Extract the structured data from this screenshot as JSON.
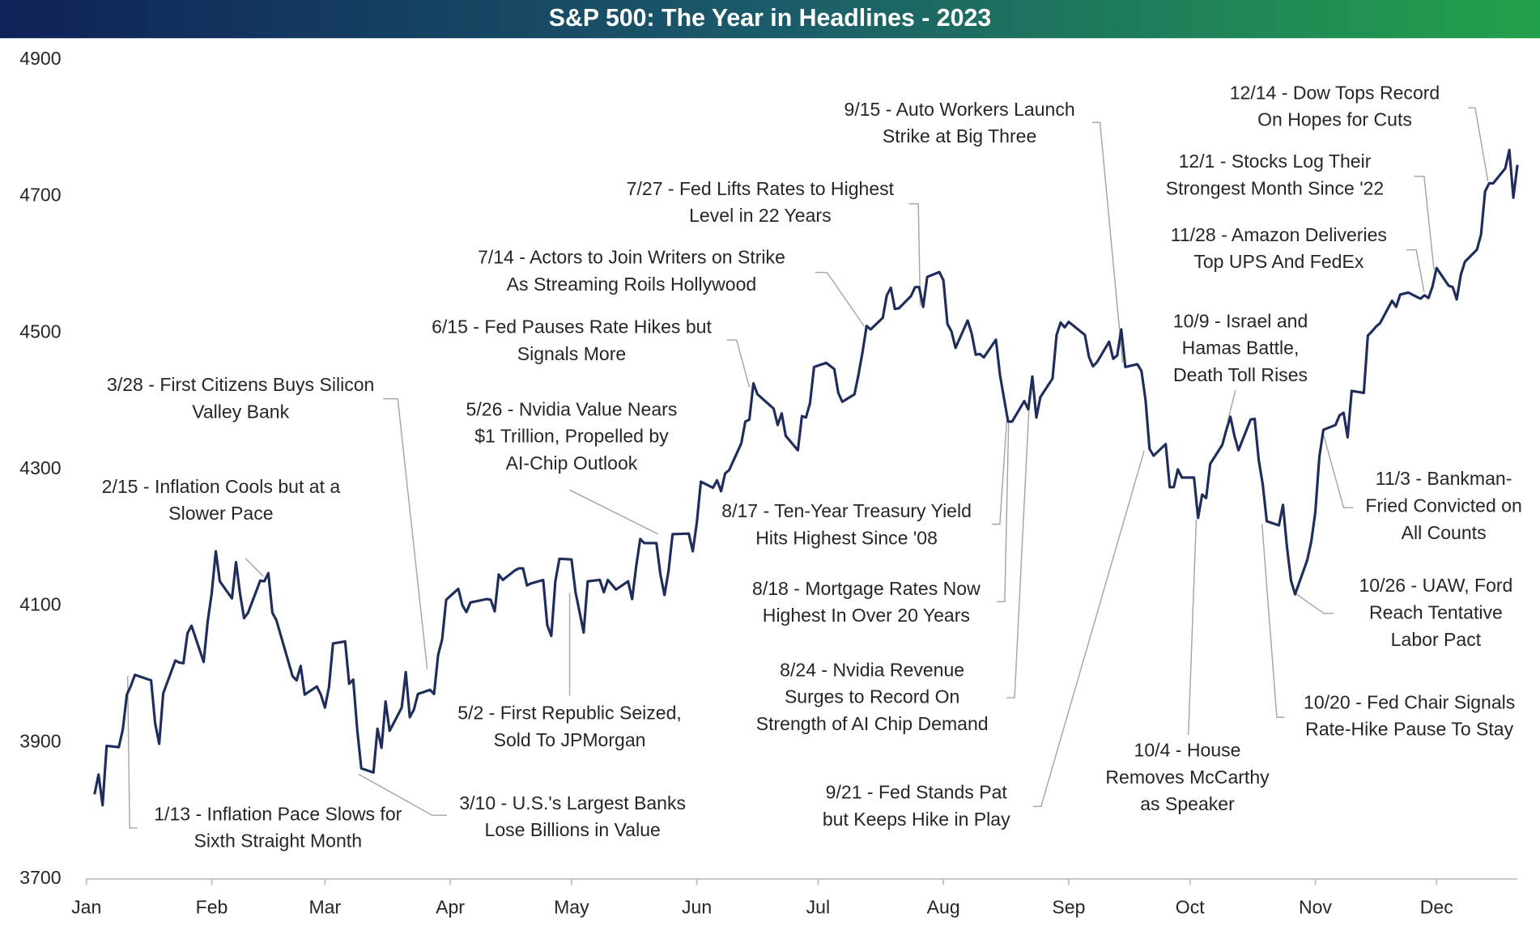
{
  "chart_data": {
    "type": "line",
    "title": "S&P 500: The Year in Headlines - 2023",
    "color": "#1f2d5c",
    "xlim": [
      0,
      354
    ],
    "ylim": [
      3700,
      4900
    ],
    "yticks": [
      3700,
      3900,
      4100,
      4300,
      4500,
      4700,
      4900
    ],
    "xticks": [
      {
        "value": 0,
        "label": "Jan"
      },
      {
        "value": 31,
        "label": "Feb"
      },
      {
        "value": 59,
        "label": "Mar"
      },
      {
        "value": 90,
        "label": "Apr"
      },
      {
        "value": 120,
        "label": "May"
      },
      {
        "value": 151,
        "label": "Jun"
      },
      {
        "value": 181,
        "label": "Jul"
      },
      {
        "value": 212,
        "label": "Aug"
      },
      {
        "value": 243,
        "label": "Sep"
      },
      {
        "value": 273,
        "label": "Oct"
      },
      {
        "value": 304,
        "label": "Nov"
      },
      {
        "value": 334,
        "label": "Dec"
      }
    ],
    "x": [
      2,
      3,
      4,
      5,
      8,
      9,
      10,
      11,
      12,
      16,
      17,
      18,
      19,
      22,
      23,
      24,
      25,
      26,
      29,
      30,
      31,
      32,
      33,
      36,
      37,
      38,
      39,
      40,
      43,
      44,
      45,
      46,
      47,
      51,
      52,
      53,
      54,
      57,
      58,
      59,
      60,
      61,
      64,
      65,
      66,
      67,
      68,
      71,
      72,
      73,
      74,
      75,
      78,
      79,
      80,
      81,
      82,
      85,
      86,
      87,
      88,
      89,
      92,
      93,
      94,
      95,
      99,
      100,
      101,
      102,
      103,
      106,
      107,
      108,
      109,
      110,
      113,
      114,
      115,
      116,
      117,
      120,
      121,
      122,
      123,
      124,
      127,
      128,
      129,
      130,
      131,
      134,
      135,
      136,
      137,
      138,
      141,
      142,
      143,
      144,
      145,
      149,
      150,
      151,
      152,
      155,
      156,
      157,
      158,
      159,
      162,
      163,
      164,
      165,
      166,
      170,
      171,
      172,
      173,
      176,
      177,
      178,
      179,
      180,
      183,
      185,
      186,
      187,
      190,
      191,
      192,
      193,
      194,
      197,
      198,
      199,
      200,
      201,
      204,
      205,
      206,
      207,
      208,
      211,
      212,
      213,
      214,
      215,
      218,
      219,
      220,
      221,
      222,
      225,
      226,
      227,
      228,
      229,
      232,
      233,
      234,
      235,
      236,
      239,
      240,
      241,
      242,
      243,
      247,
      248,
      249,
      250,
      253,
      254,
      255,
      256,
      257,
      260,
      261,
      262,
      263,
      264,
      267,
      268,
      269,
      270,
      271,
      274,
      275,
      276,
      277,
      278,
      281,
      282,
      283,
      284,
      285,
      288,
      289,
      290,
      291,
      292,
      295,
      296,
      297,
      298,
      299,
      302,
      303,
      304,
      305,
      306,
      309,
      310,
      311,
      312,
      313,
      316,
      317,
      318,
      319,
      320,
      323,
      324,
      325,
      327,
      330,
      331,
      332,
      333,
      334,
      337,
      338,
      339,
      340,
      341,
      344,
      345,
      346,
      347,
      348,
      351,
      352,
      353,
      354
    ],
    "values": [
      3824,
      3853,
      3808,
      3895,
      3893,
      3919,
      3970,
      3983,
      3999,
      3991,
      3928,
      3898,
      3972,
      4020,
      4017,
      4016,
      4060,
      4071,
      4018,
      4077,
      4119,
      4180,
      4136,
      4111,
      4164,
      4118,
      4082,
      4090,
      4137,
      4136,
      4148,
      4090,
      4079,
      3997,
      3991,
      4012,
      3970,
      3982,
      3970,
      3951,
      3981,
      4045,
      4048,
      3986,
      3992,
      3918,
      3862,
      3856,
      3920,
      3892,
      3960,
      3917,
      3951,
      4003,
      3937,
      3948,
      3971,
      3977,
      3971,
      4028,
      4051,
      4109,
      4125,
      4101,
      4091,
      4105,
      4110,
      4109,
      4092,
      4146,
      4138,
      4152,
      4155,
      4155,
      4130,
      4133,
      4138,
      4072,
      4056,
      4136,
      4169,
      4168,
      4120,
      4091,
      4061,
      4136,
      4138,
      4120,
      4138,
      4131,
      4124,
      4136,
      4110,
      4158,
      4198,
      4192,
      4192,
      4146,
      4116,
      4151,
      4205,
      4206,
      4180,
      4222,
      4282,
      4273,
      4284,
      4268,
      4294,
      4299,
      4338,
      4370,
      4373,
      4426,
      4410,
      4389,
      4365,
      4382,
      4349,
      4328,
      4378,
      4376,
      4397,
      4450,
      4456,
      4447,
      4412,
      4399,
      4410,
      4439,
      4472,
      4510,
      4505,
      4522,
      4555,
      4566,
      4535,
      4536,
      4554,
      4567,
      4567,
      4538,
      4582,
      4589,
      4577,
      4513,
      4502,
      4478,
      4518,
      4499,
      4468,
      4469,
      4464,
      4490,
      4438,
      4404,
      4370,
      4370,
      4400,
      4388,
      4436,
      4376,
      4406,
      4433,
      4497,
      4515,
      4508,
      4516,
      4497,
      4465,
      4451,
      4457,
      4487,
      4462,
      4467,
      4505,
      4450,
      4454,
      4444,
      4402,
      4330,
      4320,
      4337,
      4274,
      4274,
      4300,
      4288,
      4288,
      4229,
      4263,
      4258,
      4308,
      4336,
      4358,
      4377,
      4349,
      4328,
      4373,
      4374,
      4314,
      4278,
      4224,
      4218,
      4248,
      4186,
      4137,
      4117,
      4167,
      4194,
      4237,
      4318,
      4358,
      4365,
      4379,
      4383,
      4347,
      4415,
      4412,
      4496,
      4502,
      4509,
      4514,
      4547,
      4538,
      4556,
      4559,
      4550,
      4555,
      4551,
      4568,
      4595,
      4569,
      4567,
      4549,
      4585,
      4604,
      4622,
      4644,
      4707,
      4719,
      4719,
      4741,
      4768,
      4698,
      4746
    ],
    "annotations": [
      [
        "1/13 - Inflation Pace Slows for",
        "Sixth Straight Month"
      ],
      [
        "2/15 - Inflation Cools but at a",
        "Slower Pace"
      ],
      [
        "3/28 - First Citizens Buys Silicon",
        "Valley Bank"
      ],
      [
        "3/10 - U.S.'s Largest Banks",
        "Lose Billions in Value"
      ],
      [
        "5/2 - First Republic Seized,",
        "Sold To JPMorgan"
      ],
      [
        "5/26 - Nvidia Value Nears",
        "$1 Trillion, Propelled by",
        "AI-Chip Outlook"
      ],
      [
        "6/15 - Fed Pauses Rate Hikes but",
        "Signals More"
      ],
      [
        "7/14 - Actors to Join Writers on Strike",
        "As Streaming Roils Hollywood"
      ],
      [
        "7/27 - Fed Lifts Rates to Highest",
        "Level in 22 Years"
      ],
      [
        "9/15 - Auto Workers Launch",
        "Strike at Big Three"
      ],
      [
        "8/17 - Ten-Year Treasury Yield",
        "Hits Highest Since '08"
      ],
      [
        "8/18 - Mortgage Rates Now",
        "Highest In Over 20 Years"
      ],
      [
        "8/24 - Nvidia Revenue",
        "Surges to Record On",
        "Strength of AI Chip Demand"
      ],
      [
        "9/21 - Fed Stands Pat",
        "but Keeps Hike in Play"
      ],
      [
        "10/9 - Israel and",
        "Hamas Battle,",
        "Death Toll Rises"
      ],
      [
        "10/4 - House",
        "Removes McCarthy",
        "as Speaker"
      ],
      [
        "12/14 - Dow Tops Record",
        "On Hopes for Cuts"
      ],
      [
        "12/1 - Stocks Log Their",
        "Strongest Month Since '22"
      ],
      [
        "11/28 - Amazon Deliveries",
        "Top UPS And FedEx"
      ],
      [
        "11/3 - Bankman-",
        "Fried Convicted on",
        "All Counts"
      ],
      [
        "10/26 - UAW, Ford",
        "Reach Tentative",
        "Labor Pact"
      ],
      [
        "10/20 - Fed Chair Signals",
        "Rate-Hike Pause To Stay"
      ]
    ]
  }
}
